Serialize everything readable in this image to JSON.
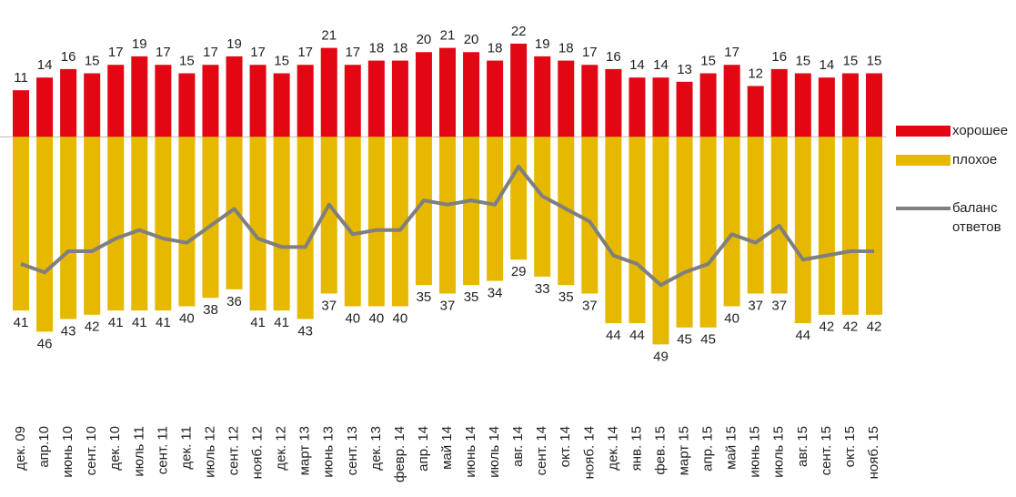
{
  "chart_data": {
    "type": "bar",
    "categories": [
      "дек. 09",
      "апр.10",
      "июнь 10",
      "сент. 10",
      "дек. 10",
      "июль 11",
      "сент. 11",
      "дек. 11",
      "июль 12",
      "сент. 12",
      "нояб. 12",
      "дек. 12",
      "март 13",
      "июнь 13",
      "сент. 13",
      "дек. 13",
      "февр. 14",
      "апр. 14",
      "май 14",
      "июнь 14",
      "июль 14",
      "авг. 14",
      "сент. 14",
      "окт. 14",
      "нояб. 14",
      "дек. 14",
      "янв. 15",
      "фев. 15",
      "март 15",
      "апр. 15",
      "май 15",
      "июнь 15",
      "июль 15",
      "авг. 15",
      "сент. 15",
      "окт. 15",
      "нояб. 15"
    ],
    "series": [
      {
        "name": "хорошее",
        "color": "#e30613",
        "type": "bar",
        "values": [
          11,
          14,
          16,
          15,
          17,
          19,
          17,
          15,
          17,
          19,
          17,
          15,
          17,
          21,
          17,
          18,
          18,
          20,
          21,
          20,
          18,
          22,
          19,
          18,
          17,
          16,
          14,
          14,
          13,
          15,
          17,
          12,
          16,
          15,
          14,
          15,
          15
        ]
      },
      {
        "name": "плохое",
        "color": "#e6b800",
        "type": "bar",
        "values": [
          -41,
          -46,
          -43,
          -42,
          -41,
          -41,
          -41,
          -40,
          -38,
          -36,
          -41,
          -41,
          -43,
          -37,
          -40,
          -40,
          -40,
          -35,
          -37,
          -35,
          -34,
          -29,
          -33,
          -35,
          -37,
          -44,
          -44,
          -49,
          -45,
          -45,
          -40,
          -37,
          -37,
          -44,
          -42,
          -42,
          -42
        ],
        "value_labels": [
          "41",
          "46",
          "43",
          "42",
          "41",
          "41",
          "41",
          "40",
          "38",
          "36",
          "41",
          "41",
          "43",
          "37",
          "40",
          "40",
          "40",
          "35",
          "37",
          "35",
          "34",
          "29",
          "33",
          "35",
          "37",
          "44",
          "44",
          "49",
          "45",
          "45",
          "40",
          "37",
          "37",
          "44",
          "42",
          "42",
          "42"
        ]
      },
      {
        "name": "баланс ответов",
        "color": "#7f7f7f",
        "type": "line",
        "values": [
          -30,
          -32,
          -27,
          -27,
          -24,
          -22,
          -24,
          -25,
          -21,
          -17,
          -24,
          -26,
          -26,
          -16,
          -23,
          -22,
          -22,
          -15,
          -16,
          -15,
          -16,
          -7,
          -14,
          -17,
          -20,
          -28,
          -30,
          -35,
          -32,
          -30,
          -23,
          -25,
          -21,
          -29,
          -28,
          -27,
          -27
        ]
      }
    ],
    "ylim": [
      -50,
      25
    ]
  }
}
